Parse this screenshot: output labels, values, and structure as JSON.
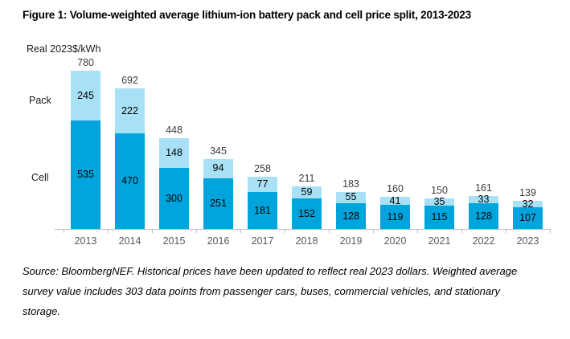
{
  "title": "Figure 1: Volume-weighted average lithium-ion battery pack and cell price split, 2013-2023",
  "chart_data": {
    "type": "bar",
    "stacked": true,
    "title": "Figure 1: Volume-weighted average lithium-ion battery pack and cell price split, 2013-2023",
    "unit_label": "Real 2023$/kWh",
    "categories": [
      "2013",
      "2014",
      "2015",
      "2016",
      "2017",
      "2018",
      "2019",
      "2020",
      "2021",
      "2022",
      "2023"
    ],
    "series": [
      {
        "name": "Cell",
        "color": "#00a4dd",
        "values": [
          535,
          470,
          300,
          251,
          181,
          152,
          128,
          119,
          115,
          128,
          107
        ]
      },
      {
        "name": "Pack",
        "color": "#a8e1f6",
        "values": [
          245,
          222,
          148,
          94,
          77,
          59,
          55,
          41,
          35,
          33,
          32
        ]
      }
    ],
    "totals": [
      780,
      692,
      448,
      345,
      258,
      211,
      183,
      160,
      150,
      161,
      139
    ],
    "ylim": [
      0,
      780
    ],
    "grid": false,
    "legend_position": "left-of-plot-text-labels",
    "axis_color": "#bfbfbf"
  },
  "labels": {
    "pack": "Pack",
    "cell": "Cell"
  },
  "source": "Source: BloombergNEF. Historical prices have been updated to reflect real 2023 dollars. Weighted average survey value includes 303 data points from passenger cars, buses, commercial vehicles, and stationary storage."
}
